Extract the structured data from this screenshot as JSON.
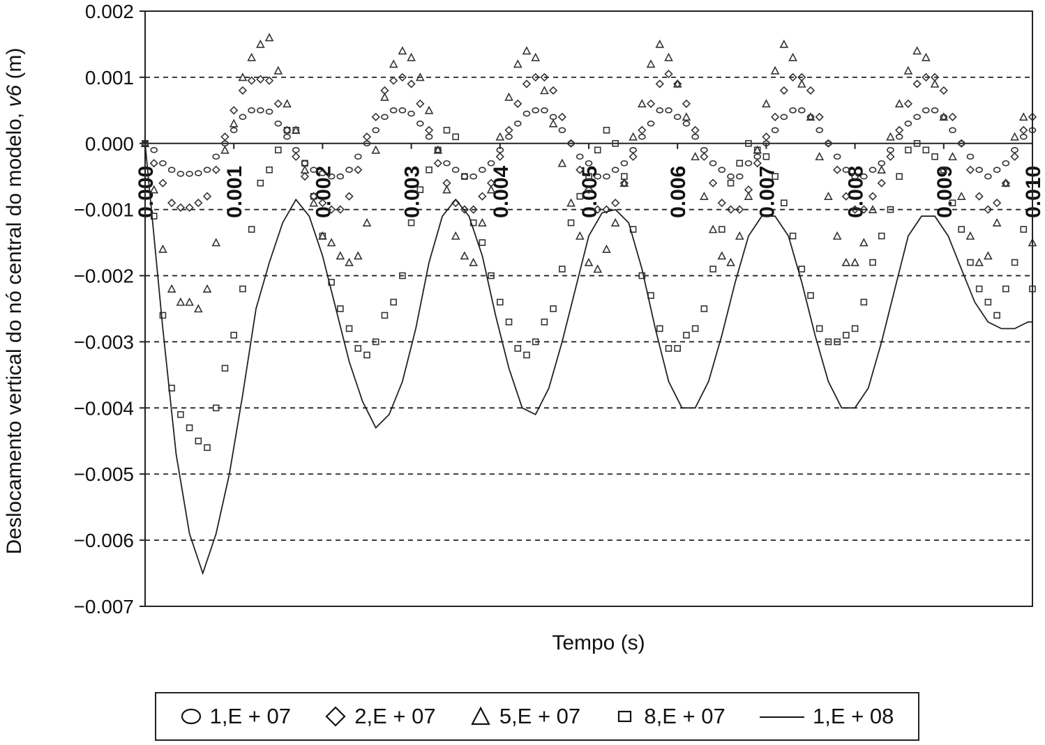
{
  "chart_data": {
    "type": "scatter",
    "xlabel": "Tempo (s)",
    "ylabel_main": "Deslocamento vertical do nó central do modelo, ",
    "ylabel_var": "v6",
    "ylabel_unit": " (m)",
    "xlim": [
      0.0,
      0.01
    ],
    "ylim": [
      -0.007,
      0.002
    ],
    "y_ticks": [
      "0.002",
      "0.001",
      "0.000",
      "−0.001",
      "−0.002",
      "−0.003",
      "−0.004",
      "−0.005",
      "−0.006",
      "−0.007"
    ],
    "y_tick_values": [
      0.002,
      0.001,
      0.0,
      -0.001,
      -0.002,
      -0.003,
      -0.004,
      -0.005,
      -0.006,
      -0.007
    ],
    "x_ticks": [
      "0.000",
      "0.001",
      "0.002",
      "0.003",
      "0.004",
      "0.005",
      "0.006",
      "0.007",
      "0.008",
      "0.009",
      "0.010"
    ],
    "x_tick_values": [
      0.0,
      0.001,
      0.002,
      0.003,
      0.004,
      0.005,
      0.006,
      0.007,
      0.008,
      0.009,
      0.01
    ],
    "grid": "horizontal dashed",
    "legend_position": "bottom",
    "series": [
      {
        "name": "1,E + 07",
        "marker": "circle",
        "x": [
          0.0,
          0.0001,
          0.0002,
          0.0003,
          0.0004,
          0.0005,
          0.0006,
          0.0007,
          0.0008,
          0.0009,
          0.001,
          0.0011,
          0.0012,
          0.0013,
          0.0014,
          0.0015,
          0.0016,
          0.0017,
          0.0018,
          0.0019,
          0.002,
          0.0021,
          0.0022,
          0.0023,
          0.0024,
          0.0025,
          0.0026,
          0.0027,
          0.0028,
          0.0029,
          0.003,
          0.0031,
          0.0032,
          0.0033,
          0.0034,
          0.0035,
          0.0036,
          0.0037,
          0.0038,
          0.0039,
          0.004,
          0.0041,
          0.0042,
          0.0043,
          0.0044,
          0.0045,
          0.0046,
          0.0047,
          0.0048,
          0.0049,
          0.005,
          0.0051,
          0.0052,
          0.0053,
          0.0054,
          0.0055,
          0.0056,
          0.0057,
          0.0058,
          0.0059,
          0.006,
          0.0061,
          0.0062,
          0.0063,
          0.0064,
          0.0065,
          0.0066,
          0.0067,
          0.0068,
          0.0069,
          0.007,
          0.0071,
          0.0072,
          0.0073,
          0.0074,
          0.0075,
          0.0076,
          0.0077,
          0.0078,
          0.0079,
          0.008,
          0.0081,
          0.0082,
          0.0083,
          0.0084,
          0.0085,
          0.0086,
          0.0087,
          0.0088,
          0.0089,
          0.009,
          0.0091,
          0.0092,
          0.0093,
          0.0094,
          0.0095,
          0.0096,
          0.0097,
          0.0098,
          0.0099,
          0.01
        ],
        "y": [
          0.0,
          -0.0001,
          -0.0003,
          -0.0004,
          -0.00046,
          -0.00046,
          -0.00045,
          -0.0004,
          -0.0002,
          0.0,
          0.0002,
          0.0004,
          0.0005,
          0.0005,
          0.00048,
          0.0003,
          0.0001,
          -0.0001,
          -0.0003,
          -0.0004,
          -0.00045,
          -0.0005,
          -0.0005,
          -0.0004,
          -0.0002,
          0.0,
          0.0002,
          0.0004,
          0.0005,
          0.0005,
          0.00045,
          0.0003,
          0.0001,
          -0.0001,
          -0.0003,
          -0.0004,
          -0.0005,
          -0.0005,
          -0.0004,
          -0.0003,
          -0.0001,
          0.0001,
          0.0003,
          0.00045,
          0.0005,
          0.0005,
          0.0004,
          0.0002,
          0.0,
          -0.0002,
          -0.0003,
          -0.0005,
          -0.0005,
          -0.0004,
          -0.0003,
          -0.0001,
          0.0001,
          0.0003,
          0.0005,
          0.0005,
          0.0004,
          0.0003,
          0.0001,
          -0.0001,
          -0.0003,
          -0.0004,
          -0.0005,
          -0.0005,
          -0.0003,
          -0.0002,
          0.0,
          0.0002,
          0.0004,
          0.0005,
          0.0005,
          0.0004,
          0.0002,
          0.0,
          -0.0002,
          -0.0004,
          -0.0005,
          -0.0005,
          -0.0004,
          -0.0003,
          -0.0001,
          0.0001,
          0.0003,
          0.0004,
          0.0005,
          0.0005,
          0.0004,
          0.0002,
          0.0,
          -0.0002,
          -0.0004,
          -0.0005,
          -0.0004,
          -0.0003,
          -0.0001,
          0.0001,
          0.0002
        ]
      },
      {
        "name": "2,E + 07",
        "marker": "diamond",
        "x": [
          0.0,
          0.0001,
          0.0002,
          0.0003,
          0.0004,
          0.0005,
          0.0006,
          0.0007,
          0.0008,
          0.0009,
          0.001,
          0.0011,
          0.0012,
          0.0013,
          0.0014,
          0.0015,
          0.0016,
          0.0017,
          0.0018,
          0.0019,
          0.002,
          0.0021,
          0.0022,
          0.0023,
          0.0024,
          0.0025,
          0.0026,
          0.0027,
          0.0028,
          0.0029,
          0.003,
          0.0031,
          0.0032,
          0.0033,
          0.0034,
          0.0035,
          0.0036,
          0.0037,
          0.0038,
          0.0039,
          0.004,
          0.0041,
          0.0042,
          0.0043,
          0.0044,
          0.0045,
          0.0046,
          0.0047,
          0.0048,
          0.0049,
          0.005,
          0.0051,
          0.0052,
          0.0053,
          0.0054,
          0.0055,
          0.0056,
          0.0057,
          0.0058,
          0.0059,
          0.006,
          0.0061,
          0.0062,
          0.0063,
          0.0064,
          0.0065,
          0.0066,
          0.0067,
          0.0068,
          0.0069,
          0.007,
          0.0071,
          0.0072,
          0.0073,
          0.0074,
          0.0075,
          0.0076,
          0.0077,
          0.0078,
          0.0079,
          0.008,
          0.0081,
          0.0082,
          0.0083,
          0.0084,
          0.0085,
          0.0086,
          0.0087,
          0.0088,
          0.0089,
          0.009,
          0.0091,
          0.0092,
          0.0093,
          0.0094,
          0.0095,
          0.0096,
          0.0097,
          0.0098,
          0.0099,
          0.01
        ],
        "y": [
          0.0,
          -0.0003,
          -0.0006,
          -0.0009,
          -0.00097,
          -0.00097,
          -0.0009,
          -0.0008,
          -0.0004,
          0.0001,
          0.0005,
          0.0008,
          0.00095,
          0.00097,
          0.00095,
          0.0006,
          0.0002,
          -0.0002,
          -0.0005,
          -0.0008,
          -0.0009,
          -0.001,
          -0.001,
          -0.0008,
          -0.0004,
          0.0001,
          0.0004,
          0.0008,
          0.00095,
          0.001,
          0.0009,
          0.0006,
          0.0002,
          -0.0003,
          -0.0006,
          -0.0009,
          -0.001,
          -0.001,
          -0.0008,
          -0.0006,
          -0.0002,
          0.0002,
          0.0006,
          0.0009,
          0.001,
          0.001,
          0.0008,
          0.0004,
          0.0,
          -0.0004,
          -0.0007,
          -0.001,
          -0.001,
          -0.0009,
          -0.0006,
          -0.0002,
          0.0002,
          0.0006,
          0.0009,
          0.00105,
          0.0009,
          0.0006,
          0.0002,
          -0.0002,
          -0.0006,
          -0.0009,
          -0.001,
          -0.001,
          -0.0007,
          -0.0003,
          0.0001,
          0.0004,
          0.0008,
          0.001,
          0.001,
          0.0008,
          0.0004,
          0.0,
          -0.0004,
          -0.0008,
          -0.001,
          -0.001,
          -0.0008,
          -0.0006,
          -0.0002,
          0.0002,
          0.0006,
          0.0009,
          0.001,
          0.001,
          0.0008,
          0.0004,
          0.0,
          -0.0004,
          -0.0008,
          -0.001,
          -0.0009,
          -0.0006,
          -0.0002,
          0.0002,
          0.0004
        ]
      },
      {
        "name": "5,E + 07",
        "marker": "triangle",
        "x": [
          0.0,
          0.0001,
          0.0002,
          0.0003,
          0.0004,
          0.0005,
          0.0006,
          0.0007,
          0.0008,
          0.0009,
          0.001,
          0.0011,
          0.0012,
          0.0013,
          0.0014,
          0.0015,
          0.0016,
          0.0017,
          0.0018,
          0.0019,
          0.002,
          0.0021,
          0.0022,
          0.0023,
          0.0024,
          0.0025,
          0.0026,
          0.0027,
          0.0028,
          0.0029,
          0.003,
          0.0031,
          0.0032,
          0.0033,
          0.0034,
          0.0035,
          0.0036,
          0.0037,
          0.0038,
          0.0039,
          0.004,
          0.0041,
          0.0042,
          0.0043,
          0.0044,
          0.0045,
          0.0046,
          0.0047,
          0.0048,
          0.0049,
          0.005,
          0.0051,
          0.0052,
          0.0053,
          0.0054,
          0.0055,
          0.0056,
          0.0057,
          0.0058,
          0.0059,
          0.006,
          0.0061,
          0.0062,
          0.0063,
          0.0064,
          0.0065,
          0.0066,
          0.0067,
          0.0068,
          0.0069,
          0.007,
          0.0071,
          0.0072,
          0.0073,
          0.0074,
          0.0075,
          0.0076,
          0.0077,
          0.0078,
          0.0079,
          0.008,
          0.0081,
          0.0082,
          0.0083,
          0.0084,
          0.0085,
          0.0086,
          0.0087,
          0.0088,
          0.0089,
          0.009,
          0.0091,
          0.0092,
          0.0093,
          0.0094,
          0.0095,
          0.0096,
          0.0097,
          0.0098,
          0.0099,
          0.01
        ],
        "y": [
          0.0,
          -0.0007,
          -0.0016,
          -0.0022,
          -0.0024,
          -0.0024,
          -0.0025,
          -0.0022,
          -0.0015,
          -0.0001,
          0.0003,
          0.001,
          0.0013,
          0.0015,
          0.0016,
          0.0011,
          0.0006,
          0.0002,
          -0.0004,
          -0.0009,
          -0.0014,
          -0.0015,
          -0.0017,
          -0.0018,
          -0.0017,
          -0.0012,
          -0.0001,
          0.0007,
          0.0012,
          0.0014,
          0.0013,
          0.001,
          0.0005,
          -0.0001,
          -0.0007,
          -0.0014,
          -0.0017,
          -0.0018,
          -0.0012,
          -0.0007,
          0.0001,
          0.0007,
          0.0012,
          0.0014,
          0.0013,
          0.0008,
          0.0003,
          -0.0003,
          -0.0009,
          -0.0014,
          -0.0018,
          -0.0019,
          -0.0016,
          -0.0012,
          -0.0006,
          0.0001,
          0.0006,
          0.0012,
          0.0015,
          0.0013,
          0.0009,
          0.0004,
          -0.0002,
          -0.0008,
          -0.0013,
          -0.0017,
          -0.0018,
          -0.0014,
          -0.0008,
          -0.0001,
          0.0006,
          0.0011,
          0.0015,
          0.0013,
          0.0009,
          0.0004,
          -0.0002,
          -0.0008,
          -0.0014,
          -0.0018,
          -0.0018,
          -0.0015,
          -0.001,
          -0.0004,
          0.0001,
          0.0006,
          0.0011,
          0.0014,
          0.0013,
          0.0009,
          0.0004,
          -0.0002,
          -0.0008,
          -0.0014,
          -0.0018,
          -0.0017,
          -0.0012,
          -0.0006,
          0.0001,
          0.0004,
          -0.0015
        ]
      },
      {
        "name": "8,E + 07",
        "marker": "square",
        "x": [
          0.0,
          0.0001,
          0.0002,
          0.0003,
          0.0004,
          0.0005,
          0.0006,
          0.0007,
          0.0008,
          0.0009,
          0.001,
          0.0011,
          0.0012,
          0.0013,
          0.0014,
          0.0015,
          0.0016,
          0.0017,
          0.0018,
          0.0019,
          0.002,
          0.0021,
          0.0022,
          0.0023,
          0.0024,
          0.0025,
          0.0026,
          0.0027,
          0.0028,
          0.0029,
          0.003,
          0.0031,
          0.0032,
          0.0033,
          0.0034,
          0.0035,
          0.0036,
          0.0037,
          0.0038,
          0.0039,
          0.004,
          0.0041,
          0.0042,
          0.0043,
          0.0044,
          0.0045,
          0.0046,
          0.0047,
          0.0048,
          0.0049,
          0.005,
          0.0051,
          0.0052,
          0.0053,
          0.0054,
          0.0055,
          0.0056,
          0.0057,
          0.0058,
          0.0059,
          0.006,
          0.0061,
          0.0062,
          0.0063,
          0.0064,
          0.0065,
          0.0066,
          0.0067,
          0.0068,
          0.0069,
          0.007,
          0.0071,
          0.0072,
          0.0073,
          0.0074,
          0.0075,
          0.0076,
          0.0077,
          0.0078,
          0.0079,
          0.008,
          0.0081,
          0.0082,
          0.0083,
          0.0084,
          0.0085,
          0.0086,
          0.0087,
          0.0088,
          0.0089,
          0.009,
          0.0091,
          0.0092,
          0.0093,
          0.0094,
          0.0095,
          0.0096,
          0.0097,
          0.0098,
          0.0099,
          0.01
        ],
        "y": [
          0.0,
          -0.0011,
          -0.0026,
          -0.0037,
          -0.0041,
          -0.0043,
          -0.0045,
          -0.0046,
          -0.004,
          -0.0034,
          -0.0029,
          -0.0022,
          -0.0013,
          -0.0006,
          -0.0004,
          -0.0001,
          0.0002,
          0.0002,
          -0.0003,
          -0.0008,
          -0.0014,
          -0.0021,
          -0.0025,
          -0.0028,
          -0.0031,
          -0.0032,
          -0.003,
          -0.0026,
          -0.0024,
          -0.002,
          -0.0012,
          -0.0007,
          -0.0004,
          -0.0001,
          0.0002,
          0.0001,
          -0.0005,
          -0.0012,
          -0.0015,
          -0.002,
          -0.0024,
          -0.0027,
          -0.0031,
          -0.0032,
          -0.003,
          -0.0027,
          -0.0025,
          -0.0019,
          -0.0012,
          -0.0008,
          -0.0005,
          -0.0001,
          0.0002,
          0.0,
          -0.0005,
          -0.0013,
          -0.002,
          -0.0023,
          -0.0028,
          -0.0031,
          -0.0031,
          -0.0029,
          -0.0028,
          -0.0025,
          -0.0019,
          -0.0013,
          -0.0006,
          -0.0003,
          0.0,
          -0.0001,
          -0.0002,
          -0.0005,
          -0.0009,
          -0.0014,
          -0.0019,
          -0.0023,
          -0.0028,
          -0.003,
          -0.003,
          -0.0029,
          -0.0028,
          -0.0024,
          -0.0018,
          -0.0014,
          -0.001,
          -0.0005,
          -0.0001,
          0.0,
          -0.0001,
          -0.0002,
          -0.0004,
          -0.0009,
          -0.0013,
          -0.0018,
          -0.0022,
          -0.0024,
          -0.0026,
          -0.0022,
          -0.0018,
          -0.0013,
          -0.0022
        ]
      },
      {
        "name": "1,E + 08",
        "marker": "line",
        "x": [
          0.0,
          0.0002,
          0.00035,
          0.0005,
          0.00065,
          0.0008,
          0.00095,
          0.0011,
          0.00125,
          0.0014,
          0.00155,
          0.0017,
          0.00185,
          0.002,
          0.00215,
          0.0023,
          0.00245,
          0.0026,
          0.00275,
          0.0029,
          0.00305,
          0.0032,
          0.00335,
          0.0035,
          0.00365,
          0.0038,
          0.00395,
          0.0041,
          0.00425,
          0.0044,
          0.00455,
          0.0047,
          0.00485,
          0.005,
          0.00515,
          0.0053,
          0.00545,
          0.0056,
          0.00575,
          0.0059,
          0.00605,
          0.0062,
          0.00635,
          0.0065,
          0.00665,
          0.0068,
          0.00695,
          0.0071,
          0.00725,
          0.0074,
          0.00755,
          0.0077,
          0.00785,
          0.008,
          0.00815,
          0.0083,
          0.00845,
          0.0086,
          0.00875,
          0.0089,
          0.00905,
          0.0092,
          0.00935,
          0.0095,
          0.00965,
          0.0098,
          0.00995,
          0.01
        ],
        "y": [
          0.0,
          -0.0028,
          -0.0047,
          -0.0059,
          -0.0065,
          -0.0059,
          -0.005,
          -0.0038,
          -0.0025,
          -0.0018,
          -0.0012,
          -0.00085,
          -0.0011,
          -0.0017,
          -0.0025,
          -0.0033,
          -0.0039,
          -0.0043,
          -0.0041,
          -0.0036,
          -0.0028,
          -0.0018,
          -0.0011,
          -0.00085,
          -0.0011,
          -0.0017,
          -0.0026,
          -0.0034,
          -0.004,
          -0.0041,
          -0.0037,
          -0.003,
          -0.0022,
          -0.0014,
          -0.00105,
          -0.001,
          -0.0012,
          -0.0019,
          -0.0028,
          -0.0036,
          -0.004,
          -0.004,
          -0.0036,
          -0.0029,
          -0.0021,
          -0.0014,
          -0.0011,
          -0.0011,
          -0.0014,
          -0.0021,
          -0.0029,
          -0.0036,
          -0.004,
          -0.004,
          -0.0037,
          -0.003,
          -0.0022,
          -0.0014,
          -0.0011,
          -0.0011,
          -0.0014,
          -0.0019,
          -0.0024,
          -0.0027,
          -0.0028,
          -0.0028,
          -0.0027,
          -0.0027
        ]
      }
    ]
  }
}
